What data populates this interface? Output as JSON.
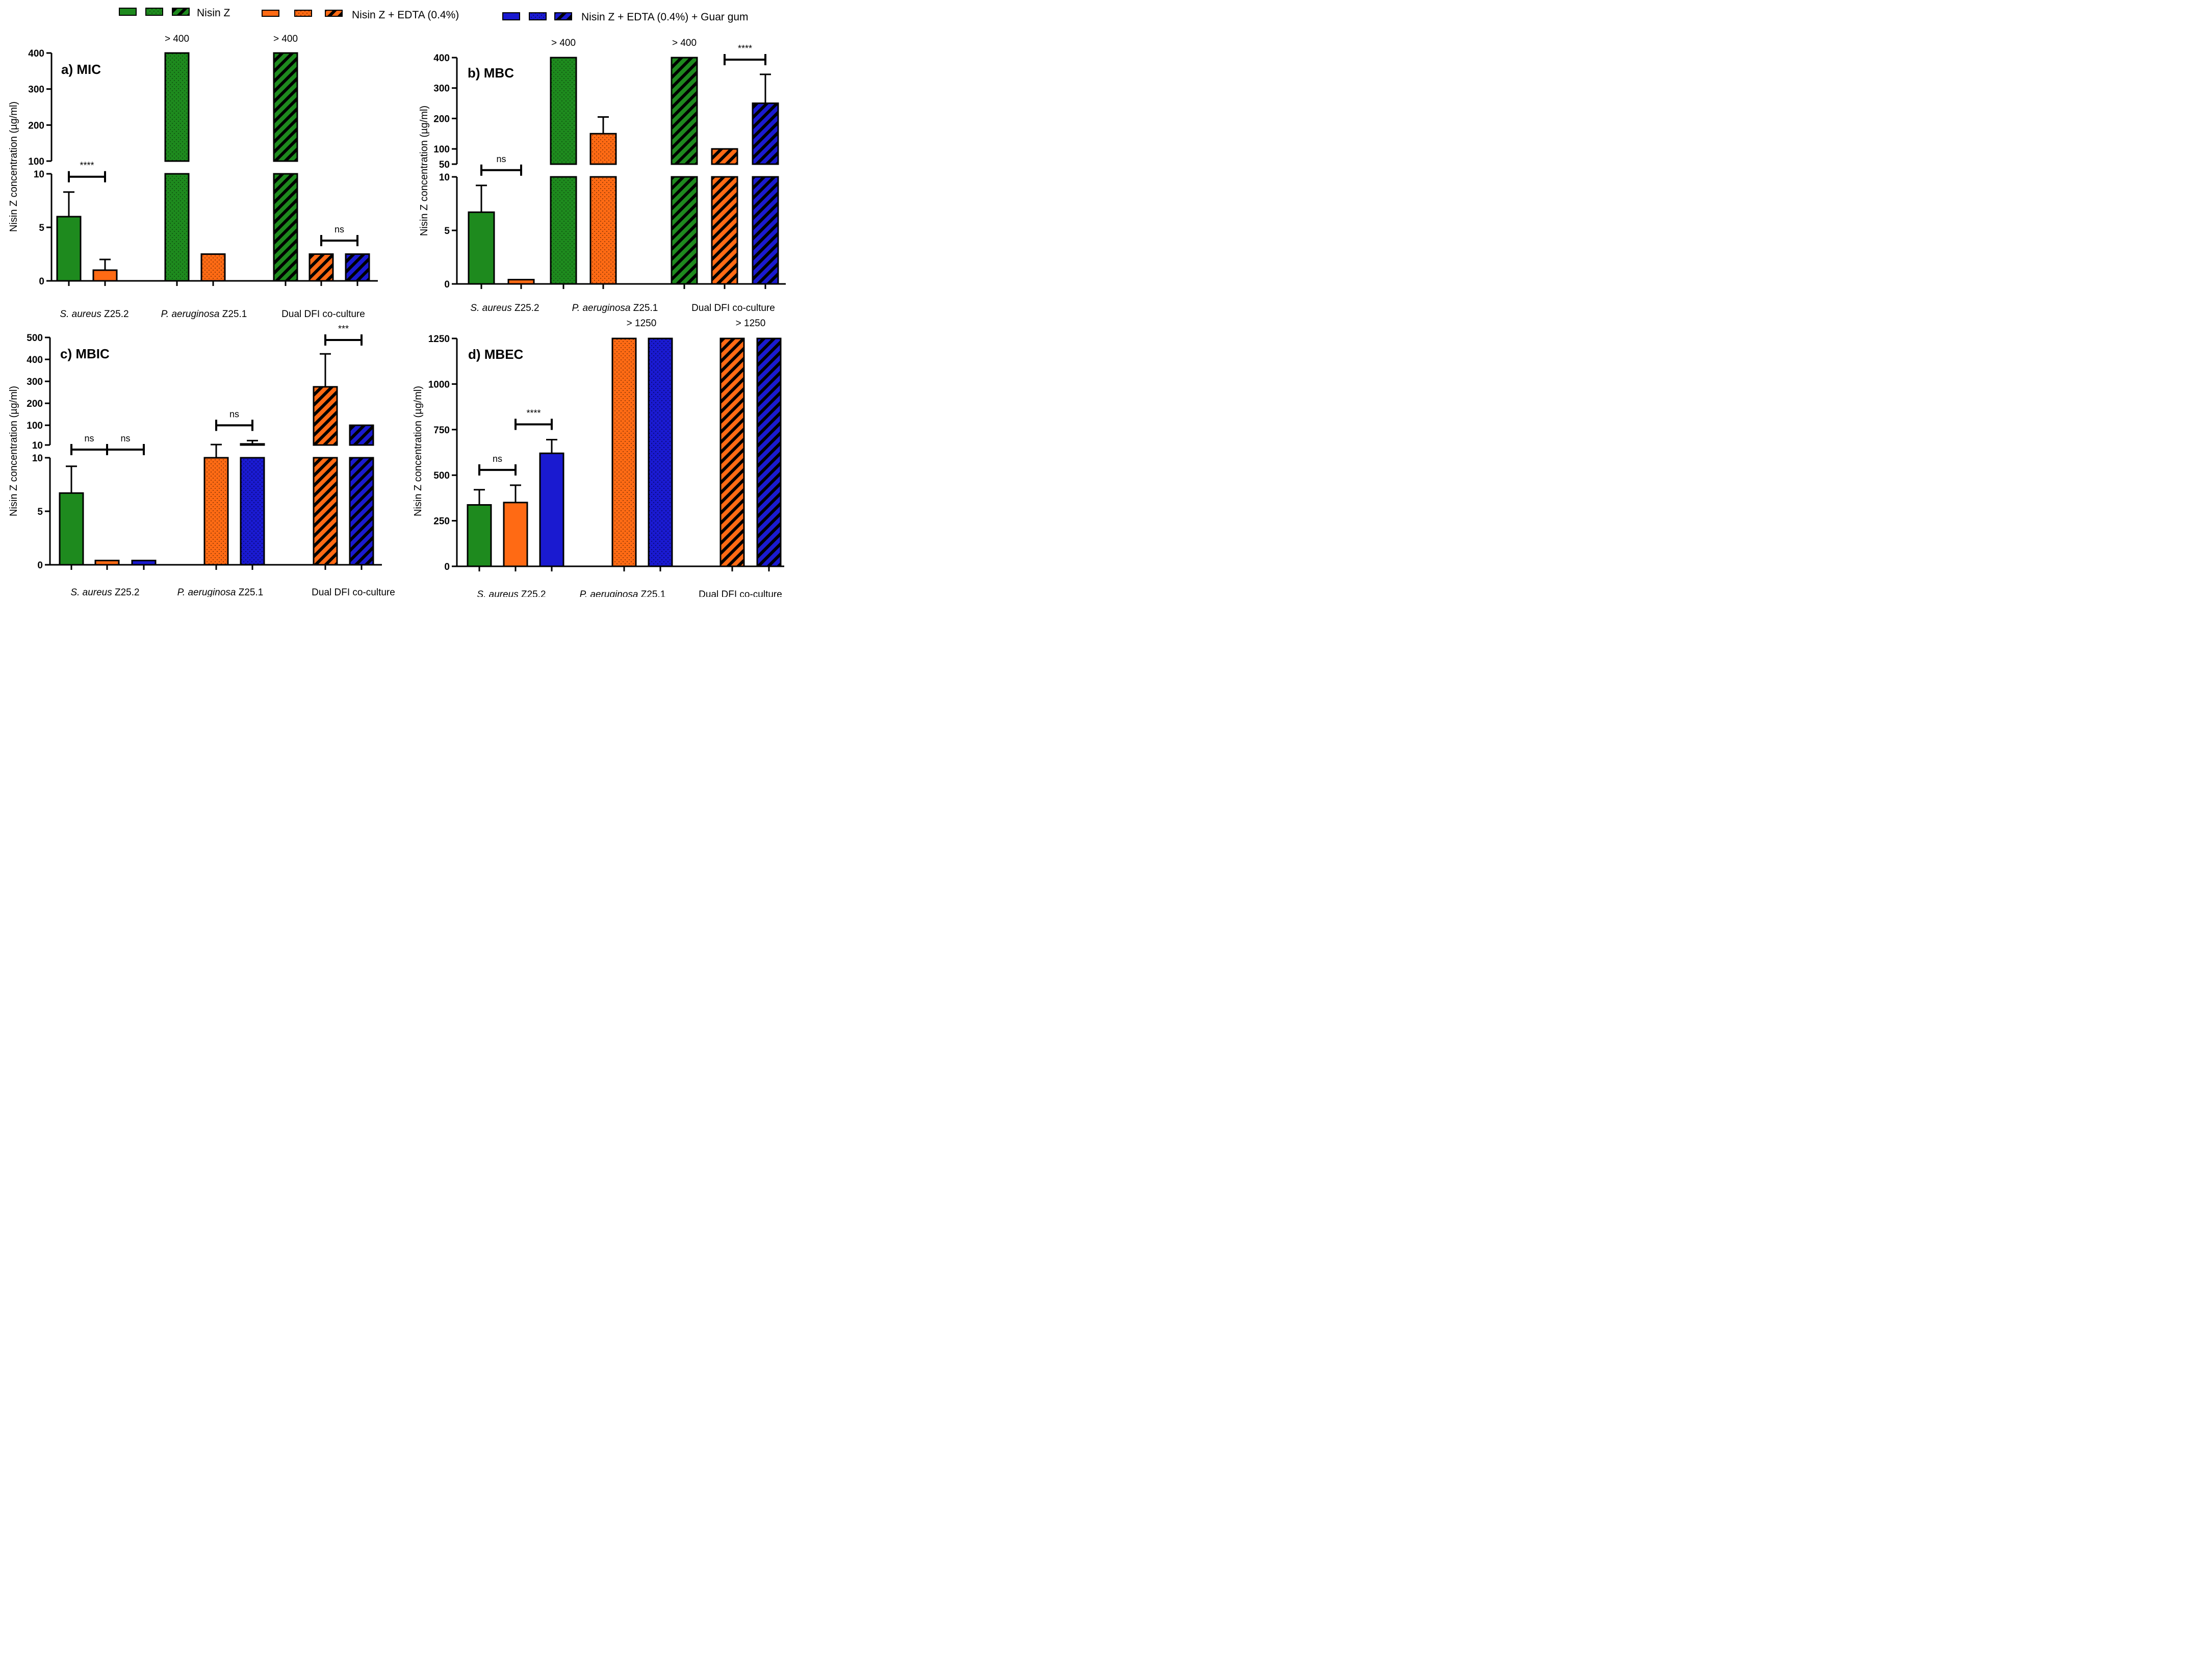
{
  "legend": [
    {
      "label": "Nisin Z",
      "color": "#1e8a1e"
    },
    {
      "label": "Nisin Z + EDTA (0.4%)",
      "color": "#ff6a14"
    },
    {
      "label": "Nisin Z + EDTA (0.4%) + Guar gum",
      "color": "#1a1ad0"
    }
  ],
  "chart_data": [
    {
      "id": "mic",
      "type": "bar",
      "title": "a) MIC",
      "ylabel": "Nisin Z concentration (µg/ml)",
      "broken_axis": {
        "lower": [
          0,
          10
        ],
        "upper": [
          100,
          400
        ]
      },
      "lower_ticks": [
        "0",
        "5",
        "10"
      ],
      "upper_ticks": [
        "100",
        "200",
        "300",
        "400"
      ],
      "groups": [
        "S. aureus Z25.2",
        "P. aeruginosa Z25.1",
        "Dual DFI co-culture"
      ],
      "bars": [
        {
          "group": 0,
          "series": "Nisin Z",
          "pattern": "solid",
          "value": 6.0,
          "error": 2.3
        },
        {
          "group": 0,
          "series": "Nisin Z + EDTA (0.4%)",
          "pattern": "solid",
          "value": 1.0,
          "error": 1.0
        },
        {
          "group": 1,
          "series": "Nisin Z",
          "pattern": "dots",
          "value": 400,
          "label": "> 400"
        },
        {
          "group": 1,
          "series": "Nisin Z + EDTA (0.4%)",
          "pattern": "dots",
          "value": 2.5
        },
        {
          "group": 2,
          "series": "Nisin Z",
          "pattern": "hatch",
          "value": 400,
          "label": "> 400"
        },
        {
          "group": 2,
          "series": "Nisin Z + EDTA (0.4%)",
          "pattern": "hatch",
          "value": 2.5
        },
        {
          "group": 2,
          "series": "Nisin Z + EDTA (0.4%) + Guar gum",
          "pattern": "hatch",
          "value": 2.5
        }
      ],
      "significance": [
        {
          "between": [
            0,
            1
          ],
          "label": "****"
        },
        {
          "between": [
            5,
            6
          ],
          "label": "ns"
        }
      ]
    },
    {
      "id": "mbc",
      "type": "bar",
      "title": "b) MBC",
      "ylabel": "Nisin Z concentration (µg/ml)",
      "broken_axis": {
        "lower": [
          0,
          10
        ],
        "upper": [
          50,
          400
        ]
      },
      "lower_ticks": [
        "0",
        "5",
        "10"
      ],
      "upper_ticks": [
        "50",
        "100",
        "200",
        "300",
        "400"
      ],
      "groups": [
        "S. aureus Z25.2",
        "P. aeruginosa Z25.1",
        "Dual DFI co-culture"
      ],
      "bars": [
        {
          "group": 0,
          "series": "Nisin Z",
          "pattern": "solid",
          "value": 6.7,
          "error": 2.5
        },
        {
          "group": 0,
          "series": "Nisin Z + EDTA (0.4%)",
          "pattern": "solid",
          "value": 0.4
        },
        {
          "group": 1,
          "series": "Nisin Z",
          "pattern": "dots",
          "value": 400,
          "label": "> 400"
        },
        {
          "group": 1,
          "series": "Nisin Z + EDTA (0.4%)",
          "pattern": "dots",
          "value": 150,
          "error": 55
        },
        {
          "group": 2,
          "series": "Nisin Z",
          "pattern": "hatch",
          "value": 400,
          "label": "> 400"
        },
        {
          "group": 2,
          "series": "Nisin Z + EDTA (0.4%)",
          "pattern": "hatch",
          "value": 100
        },
        {
          "group": 2,
          "series": "Nisin Z + EDTA (0.4%) + Guar gum",
          "pattern": "hatch",
          "value": 250,
          "error": 95
        }
      ],
      "significance": [
        {
          "between": [
            0,
            1
          ],
          "label": "ns"
        },
        {
          "between": [
            5,
            6
          ],
          "label": "****"
        }
      ]
    },
    {
      "id": "mbic",
      "type": "bar",
      "title": "c) MBIC",
      "ylabel": "Nisin Z concentration (µg/ml)",
      "broken_axis": {
        "lower": [
          0,
          10
        ],
        "upper": [
          10,
          500
        ]
      },
      "lower_ticks": [
        "0",
        "5",
        "10"
      ],
      "upper_ticks": [
        "10",
        "100",
        "200",
        "300",
        "400",
        "500"
      ],
      "groups": [
        "S. aureus Z25.2",
        "P. aeruginosa Z25.1",
        "Dual DFI co-culture"
      ],
      "bars": [
        {
          "group": 0,
          "series": "Nisin Z",
          "pattern": "solid",
          "value": 6.7,
          "error": 2.5
        },
        {
          "group": 0,
          "series": "Nisin Z + EDTA (0.4%)",
          "pattern": "solid",
          "value": 0.4
        },
        {
          "group": 0,
          "series": "Nisin Z + EDTA (0.4%) + Guar gum",
          "pattern": "solid",
          "value": 0.4
        },
        {
          "group": 1,
          "series": "Nisin Z + EDTA (0.4%)",
          "pattern": "dots",
          "value": 10,
          "error": 2
        },
        {
          "group": 1,
          "series": "Nisin Z + EDTA (0.4%) + Guar gum",
          "pattern": "dots",
          "value": 15,
          "error": 15
        },
        {
          "group": 2,
          "series": "Nisin Z + EDTA (0.4%)",
          "pattern": "hatch",
          "value": 275,
          "error": 150
        },
        {
          "group": 2,
          "series": "Nisin Z + EDTA (0.4%) + Guar gum",
          "pattern": "hatch",
          "value": 100
        }
      ],
      "significance": [
        {
          "between": [
            0,
            1
          ],
          "label": "ns"
        },
        {
          "between": [
            1,
            2
          ],
          "label": "ns"
        },
        {
          "between": [
            3,
            4
          ],
          "label": "ns"
        },
        {
          "between": [
            5,
            6
          ],
          "label": "***"
        }
      ]
    },
    {
      "id": "mbec",
      "type": "bar",
      "title": "d) MBEC",
      "ylabel": "Nisin Z concentration (µg/ml)",
      "ylim": [
        0,
        1250
      ],
      "ticks": [
        "0",
        "250",
        "500",
        "750",
        "1000",
        "1250"
      ],
      "groups": [
        "S. aureus Z25.2",
        "P. aeruginosa Z25.1",
        "Dual DFI co-culture"
      ],
      "bars": [
        {
          "group": 0,
          "series": "Nisin Z",
          "pattern": "solid",
          "value": 337,
          "error": 83
        },
        {
          "group": 0,
          "series": "Nisin Z + EDTA (0.4%)",
          "pattern": "solid",
          "value": 350,
          "error": 95
        },
        {
          "group": 0,
          "series": "Nisin Z + EDTA (0.4%) + Guar gum",
          "pattern": "solid",
          "value": 620,
          "error": 75
        },
        {
          "group": 1,
          "series": "Nisin Z + EDTA (0.4%)",
          "pattern": "dots",
          "value": 1250
        },
        {
          "group": 1,
          "series": "Nisin Z + EDTA (0.4%) + Guar gum",
          "pattern": "dots",
          "value": 1250
        },
        {
          "group": 2,
          "series": "Nisin Z + EDTA (0.4%)",
          "pattern": "hatch",
          "value": 1250
        },
        {
          "group": 2,
          "series": "Nisin Z + EDTA (0.4%) + Guar gum",
          "pattern": "hatch",
          "value": 1250
        }
      ],
      "group_labels": [
        "> 1250",
        "> 1250"
      ],
      "significance": [
        {
          "between": [
            0,
            1
          ],
          "label": "ns"
        },
        {
          "between": [
            1,
            2
          ],
          "label": "****"
        }
      ]
    }
  ]
}
